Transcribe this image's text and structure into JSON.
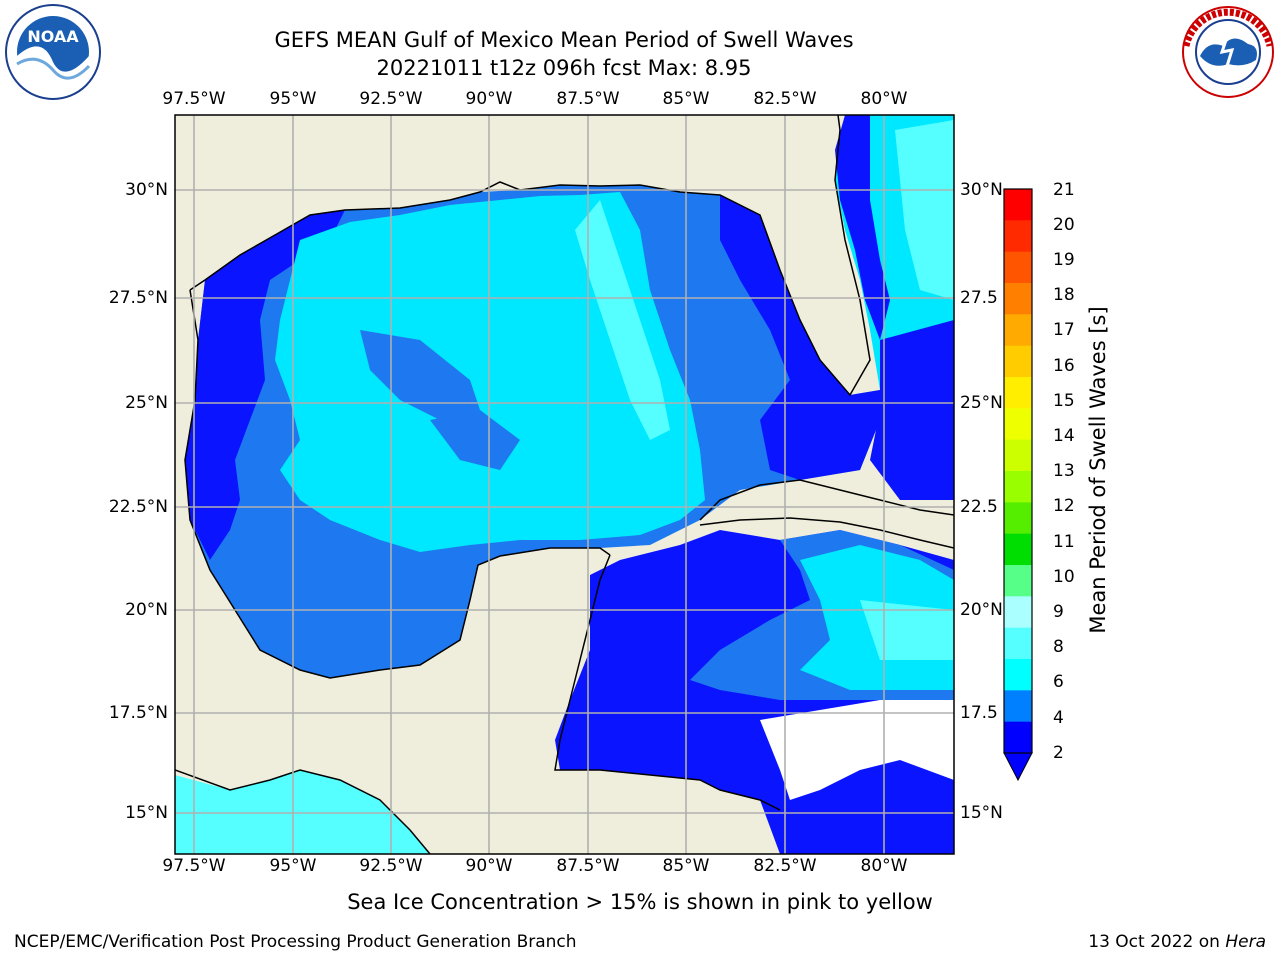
{
  "header": {
    "title_line1": "GEFS MEAN Gulf of Mexico Mean Period of Swell Waves",
    "title_line2": "20221011 t12z 096h fcst   Max: 8.95"
  },
  "map": {
    "lon_labels": [
      "97.5°W",
      "95°W",
      "92.5°W",
      "90°W",
      "87.5°W",
      "85°W",
      "82.5°W",
      "80°W"
    ],
    "lat_labels": [
      "30°N",
      "27.5°N",
      "25°N",
      "22.5°N",
      "20°N",
      "17.5°N",
      "15°N"
    ],
    "lat_labels_right": [
      "30°N",
      "27.5",
      "25°N",
      "22.5",
      "20°N",
      "17.5",
      "15°N"
    ],
    "land_color": "#efeddc",
    "grid_color": "#b0b0b0"
  },
  "colorbar": {
    "label": "Mean Period of Swell Waves [s]",
    "ticks": [
      "21",
      "20",
      "19",
      "18",
      "17",
      "16",
      "15",
      "14",
      "13",
      "12",
      "11",
      "10",
      "9",
      "8",
      "6",
      "4",
      "2"
    ],
    "colors": [
      "#ff0000",
      "#ff2a00",
      "#ff5500",
      "#ff7f00",
      "#ffaa00",
      "#ffcc00",
      "#ffee00",
      "#eeff00",
      "#ccff00",
      "#99ff00",
      "#55ee00",
      "#00dd00",
      "#55ff88",
      "#aaffff",
      "#55ffff",
      "#00ffff",
      "#0080ff",
      "#0000ff"
    ]
  },
  "footer": {
    "note": "Sea Ice Concentration > 15% is shown in pink to yellow",
    "credit": "NCEP/EMC/Verification Post Processing Product Generation Branch",
    "date": "13 Oct 2022 on ",
    "host": "Hera"
  },
  "logos": {
    "left_name": "noaa-logo",
    "right_name": "nws-logo",
    "left_text": "NOAA",
    "right_text": "NATIONAL WEATHER SERVICE"
  }
}
